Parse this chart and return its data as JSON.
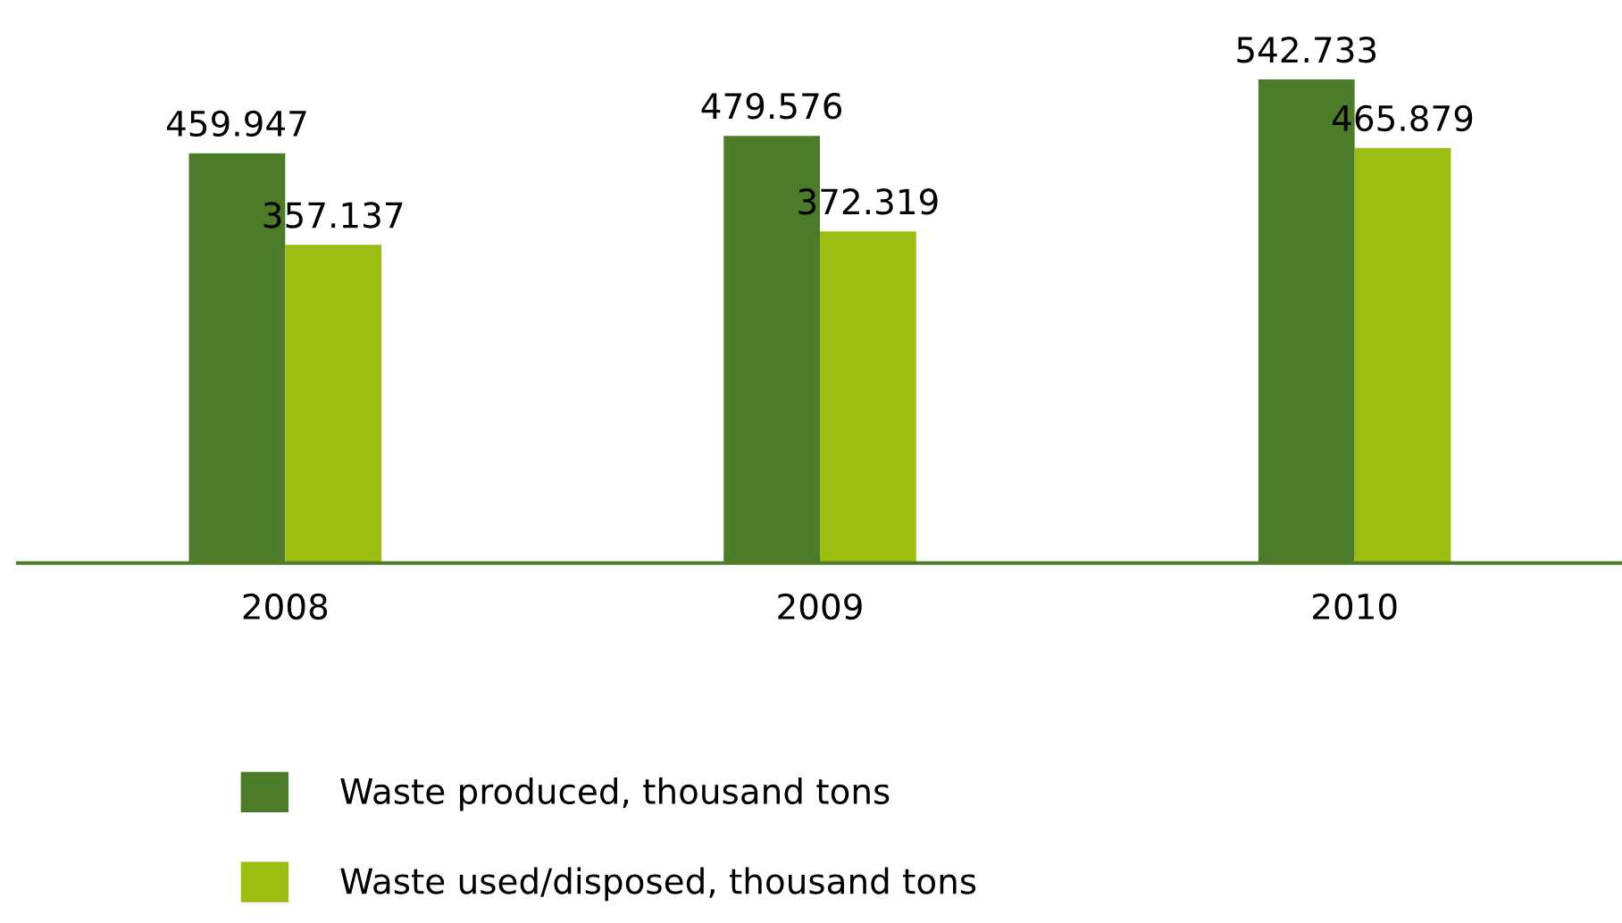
{
  "chart_data": {
    "type": "bar",
    "categories": [
      "2008",
      "2009",
      "2010"
    ],
    "series": [
      {
        "name": "Waste produced, thousand tons",
        "color": "#4c7b2a",
        "values": [
          459.947,
          479.576,
          542.733
        ]
      },
      {
        "name": "Waste used/disposed, thousand tons",
        "color": "#9bbd12",
        "values": [
          357.137,
          372.319,
          465.879
        ]
      }
    ],
    "data_labels": true,
    "grid": false,
    "legend": "bottom"
  }
}
